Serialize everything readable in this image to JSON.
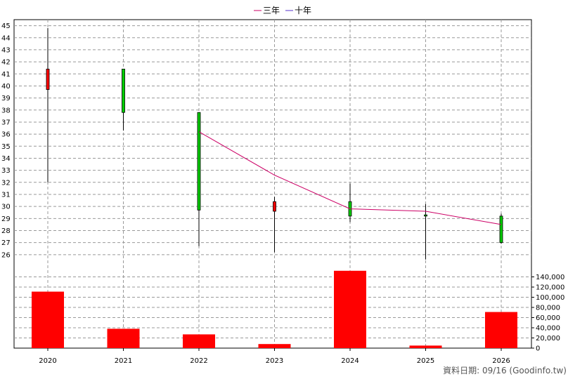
{
  "legend": {
    "items": [
      {
        "label": "三年",
        "color": "#cc0066"
      },
      {
        "label": "十年",
        "color": "#5533cc"
      }
    ],
    "placement": "top-center"
  },
  "footer": {
    "text": "資料日期: 09/16  (Goodinfo.tw)"
  },
  "chart_data": [
    {
      "type": "candlestick",
      "categories": [
        "2020",
        "2021",
        "2022",
        "2023",
        "2024",
        "2025",
        "2026"
      ],
      "ohlc": [
        {
          "open": 41.4,
          "high": 44.8,
          "low": 32.0,
          "close": 39.7
        },
        {
          "open": 37.8,
          "high": 41.4,
          "low": 36.3,
          "close": 41.4
        },
        {
          "open": 29.7,
          "high": 37.8,
          "low": 26.7,
          "close": 37.8
        },
        {
          "open": 30.4,
          "high": 30.8,
          "low": 26.2,
          "close": 29.6
        },
        {
          "open": 29.2,
          "high": 31.9,
          "low": 28.7,
          "close": 30.4
        },
        {
          "open": 29.2,
          "high": 30.2,
          "low": 25.6,
          "close": 29.3
        },
        {
          "open": 27.0,
          "high": 29.4,
          "low": 26.9,
          "close": 29.2
        }
      ],
      "up_color": "#00cc00",
      "down_color": "#ff0000",
      "series": [
        {
          "name": "三年",
          "x": [
            "2022",
            "2023",
            "2024",
            "2025",
            "2026"
          ],
          "values": [
            36.2,
            32.6,
            29.8,
            29.6,
            28.5
          ],
          "color": "#cc0066"
        }
      ],
      "y_ticks": [
        26,
        27,
        28,
        29,
        30,
        31,
        32,
        33,
        34,
        35,
        36,
        37,
        38,
        39,
        40,
        41,
        42,
        43,
        44,
        45
      ],
      "ylim": [
        25.0,
        45.5
      ],
      "grid": true
    },
    {
      "type": "bar",
      "categories": [
        "2020",
        "2021",
        "2022",
        "2023",
        "2024",
        "2025",
        "2026"
      ],
      "values": [
        111000,
        38000,
        27000,
        8000,
        152000,
        5000,
        71000
      ],
      "color": "#ff0000",
      "y_ticks": [
        0,
        20000,
        40000,
        60000,
        80000,
        100000,
        120000,
        140000
      ],
      "y_tick_labels": [
        "0",
        "20,000",
        "40,000",
        "60,000",
        "80,000",
        "100,000",
        "120,000",
        "140,000"
      ],
      "ylim": [
        0,
        160000
      ],
      "grid": true
    }
  ]
}
